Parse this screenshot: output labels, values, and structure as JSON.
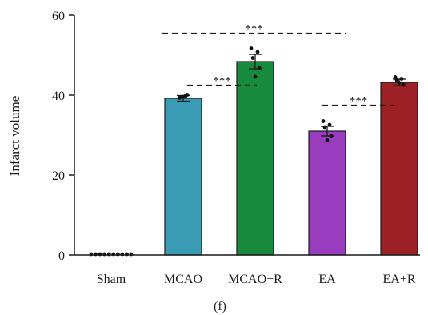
{
  "chart_data": {
    "type": "bar",
    "title": "",
    "xlabel": "",
    "ylabel": "Infarct volume",
    "ylim": [
      0,
      60
    ],
    "yticks": [
      "0",
      "20",
      "40",
      "60"
    ],
    "grid": false,
    "categories": [
      "Sham",
      "MCAO",
      "MCAO+R",
      "EA",
      "EA+R"
    ],
    "values": [
      0,
      39.2,
      48.4,
      31.0,
      43.2
    ],
    "errors": [
      0,
      0.7,
      1.8,
      1.2,
      0.8
    ],
    "colors": [
      "#cccccc",
      "#3a9bb5",
      "#178a3e",
      "#9a3cbe",
      "#9c2025"
    ],
    "points": [
      [
        0,
        0,
        0,
        0,
        0,
        0,
        0,
        0,
        0,
        0
      ],
      [
        39.3,
        39.8,
        39.5,
        40.1,
        39.6
      ],
      [
        51.7,
        50.8,
        49.3,
        46.9,
        44.6
      ],
      [
        33.5,
        32.6,
        32.0,
        29.8,
        28.7
      ],
      [
        44.5,
        44.1,
        43.8,
        42.6,
        43.1
      ]
    ],
    "significance": [
      {
        "from": 1,
        "to": 3,
        "y": 55.5,
        "label": "***"
      },
      {
        "from": 1,
        "to": 2,
        "y": 42.5,
        "label": "***"
      },
      {
        "from": 3,
        "to": 4,
        "y": 37.5,
        "label": "***"
      }
    ],
    "panel_label": "(f)"
  }
}
